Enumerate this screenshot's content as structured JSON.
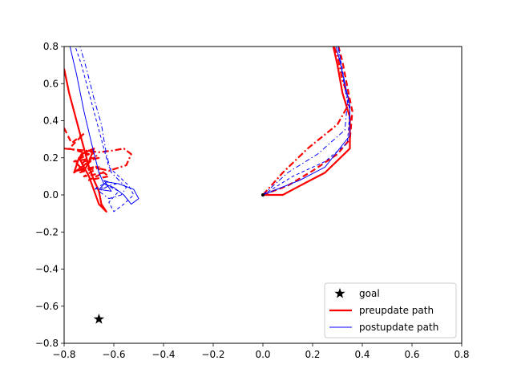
{
  "chart_data": {
    "type": "line",
    "title": "",
    "xlabel": "",
    "ylabel": "",
    "xlim": [
      -0.8,
      0.8
    ],
    "ylim": [
      -0.8,
      0.8
    ],
    "xticks": [
      -0.8,
      -0.6,
      -0.4,
      -0.2,
      0.0,
      0.2,
      0.4,
      0.6,
      0.8
    ],
    "yticks": [
      -0.8,
      -0.6,
      -0.4,
      -0.2,
      0.0,
      0.2,
      0.4,
      0.6,
      0.8
    ],
    "xtick_labels": [
      "−0.8",
      "−0.6",
      "−0.4",
      "−0.2",
      "0.0",
      "0.2",
      "0.4",
      "0.6",
      "0.8"
    ],
    "ytick_labels": [
      "−0.8",
      "−0.6",
      "−0.4",
      "−0.2",
      "0.0",
      "0.2",
      "0.4",
      "0.6",
      "0.8"
    ],
    "grid": false,
    "legend": {
      "placement": "lower-right",
      "entries": [
        "goal",
        "preupdate path",
        "postupdate path"
      ]
    },
    "colors": {
      "preupdate": "#ff0000",
      "postupdate": "#0000ff",
      "goal": "#000000"
    },
    "goal": {
      "x": -0.66,
      "y": -0.67
    },
    "series": [
      {
        "name": "preupdate path",
        "group": "pre",
        "style": "solid",
        "points": [
          [
            0,
            0
          ],
          [
            0.08,
            0.0
          ],
          [
            0.15,
            0.05
          ],
          [
            0.25,
            0.12
          ],
          [
            0.35,
            0.25
          ],
          [
            0.35,
            0.42
          ],
          [
            0.32,
            0.55
          ],
          [
            0.3,
            0.7
          ],
          [
            0.28,
            0.82
          ]
        ]
      },
      {
        "name": "preupdate path",
        "group": "pre",
        "style": "dashed",
        "points": [
          [
            0,
            0
          ],
          [
            0.1,
            0.05
          ],
          [
            0.2,
            0.13
          ],
          [
            0.3,
            0.22
          ],
          [
            0.35,
            0.3
          ],
          [
            0.36,
            0.45
          ],
          [
            0.34,
            0.58
          ],
          [
            0.32,
            0.72
          ],
          [
            0.3,
            0.82
          ]
        ]
      },
      {
        "name": "preupdate path",
        "group": "pre",
        "style": "dashdot",
        "points": [
          [
            0,
            0
          ],
          [
            0.08,
            0.12
          ],
          [
            0.18,
            0.25
          ],
          [
            0.3,
            0.38
          ],
          [
            0.35,
            0.5
          ],
          [
            0.32,
            0.62
          ],
          [
            0.3,
            0.75
          ],
          [
            0.28,
            0.82
          ]
        ]
      },
      {
        "name": "postupdate path",
        "group": "post",
        "style": "solid",
        "points": [
          [
            0,
            0
          ],
          [
            0.15,
            0.08
          ],
          [
            0.25,
            0.15
          ],
          [
            0.35,
            0.32
          ],
          [
            0.35,
            0.48
          ],
          [
            0.33,
            0.6
          ],
          [
            0.31,
            0.72
          ],
          [
            0.29,
            0.82
          ]
        ]
      },
      {
        "name": "postupdate path",
        "group": "post",
        "style": "dashed",
        "points": [
          [
            0,
            0
          ],
          [
            0.12,
            0.1
          ],
          [
            0.25,
            0.18
          ],
          [
            0.34,
            0.28
          ],
          [
            0.35,
            0.45
          ],
          [
            0.33,
            0.6
          ],
          [
            0.31,
            0.75
          ],
          [
            0.3,
            0.82
          ]
        ]
      },
      {
        "name": "postupdate path",
        "group": "post",
        "style": "dashdot",
        "points": [
          [
            0,
            0
          ],
          [
            0.1,
            0.12
          ],
          [
            0.22,
            0.22
          ],
          [
            0.33,
            0.35
          ],
          [
            0.34,
            0.5
          ],
          [
            0.32,
            0.65
          ],
          [
            0.3,
            0.82
          ]
        ]
      },
      {
        "name": "preupdate path",
        "group": "pre",
        "style": "solid",
        "points": [
          [
            -0.8,
            0.68
          ],
          [
            -0.78,
            0.55
          ],
          [
            -0.75,
            0.4
          ],
          [
            -0.72,
            0.25
          ],
          [
            -0.7,
            0.15
          ],
          [
            -0.68,
            0.08
          ],
          [
            -0.66,
            0.02
          ],
          [
            -0.65,
            -0.05
          ],
          [
            -0.63,
            -0.09
          ],
          [
            -0.66,
            -0.05
          ],
          [
            -0.7,
            0.1
          ],
          [
            -0.74,
            0.2
          ],
          [
            -0.76,
            0.12
          ],
          [
            -0.7,
            0.18
          ],
          [
            -0.68,
            0.25
          ],
          [
            -0.73,
            0.22
          ],
          [
            -0.75,
            0.17
          ],
          [
            -0.72,
            0.13
          ],
          [
            -0.69,
            0.2
          ]
        ]
      },
      {
        "name": "preupdate path",
        "group": "pre",
        "style": "dashed",
        "points": [
          [
            -0.8,
            0.36
          ],
          [
            -0.77,
            0.28
          ],
          [
            -0.72,
            0.33
          ],
          [
            -0.78,
            0.25
          ],
          [
            -0.7,
            0.22
          ],
          [
            -0.76,
            0.18
          ],
          [
            -0.68,
            0.2
          ],
          [
            -0.74,
            0.12
          ],
          [
            -0.66,
            0.15
          ],
          [
            -0.72,
            0.1
          ],
          [
            -0.64,
            0.12
          ],
          [
            -0.7,
            0.08
          ],
          [
            -0.62,
            0.1
          ],
          [
            -0.68,
            0.16
          ]
        ]
      },
      {
        "name": "preupdate path",
        "group": "pre",
        "style": "dashdot",
        "points": [
          [
            -0.8,
            0.25
          ],
          [
            -0.72,
            0.24
          ],
          [
            -0.66,
            0.23
          ],
          [
            -0.6,
            0.24
          ],
          [
            -0.56,
            0.25
          ],
          [
            -0.53,
            0.22
          ],
          [
            -0.55,
            0.16
          ],
          [
            -0.62,
            0.13
          ],
          [
            -0.68,
            0.15
          ],
          [
            -0.75,
            0.13
          ],
          [
            -0.72,
            0.18
          ],
          [
            -0.66,
            0.2
          ],
          [
            -0.7,
            0.24
          ],
          [
            -0.74,
            0.2
          ]
        ]
      },
      {
        "name": "postupdate path",
        "group": "post",
        "style": "solid",
        "points": [
          [
            -0.78,
            0.82
          ],
          [
            -0.75,
            0.65
          ],
          [
            -0.72,
            0.45
          ],
          [
            -0.69,
            0.28
          ],
          [
            -0.66,
            0.12
          ],
          [
            -0.64,
            0.06
          ],
          [
            -0.6,
            0.04
          ],
          [
            -0.56,
            0.0
          ],
          [
            -0.53,
            -0.05
          ],
          [
            -0.5,
            -0.02
          ],
          [
            -0.52,
            0.03
          ],
          [
            -0.58,
            0.06
          ],
          [
            -0.63,
            0.07
          ],
          [
            -0.66,
            0.03
          ],
          [
            -0.61,
            0.02
          ],
          [
            -0.64,
            0.08
          ]
        ]
      },
      {
        "name": "postupdate path",
        "group": "post",
        "style": "dashed",
        "points": [
          [
            -0.76,
            0.82
          ],
          [
            -0.73,
            0.7
          ],
          [
            -0.7,
            0.55
          ],
          [
            -0.67,
            0.4
          ],
          [
            -0.64,
            0.25
          ],
          [
            -0.62,
            0.15
          ],
          [
            -0.58,
            0.1
          ],
          [
            -0.54,
            0.05
          ],
          [
            -0.52,
            0.0
          ],
          [
            -0.56,
            -0.05
          ],
          [
            -0.6,
            -0.09
          ],
          [
            -0.62,
            -0.04
          ],
          [
            -0.58,
            0.02
          ],
          [
            -0.64,
            0.06
          ],
          [
            -0.68,
            0.03
          ],
          [
            -0.63,
            0.04
          ]
        ]
      },
      {
        "name": "postupdate path",
        "group": "post",
        "style": "dashdot",
        "points": [
          [
            -0.74,
            0.82
          ],
          [
            -0.71,
            0.68
          ],
          [
            -0.68,
            0.52
          ],
          [
            -0.65,
            0.38
          ],
          [
            -0.63,
            0.22
          ],
          [
            -0.61,
            0.12
          ],
          [
            -0.58,
            0.08
          ],
          [
            -0.55,
            0.04
          ],
          [
            -0.57,
            0.0
          ],
          [
            -0.62,
            -0.02
          ],
          [
            -0.66,
            0.02
          ],
          [
            -0.62,
            0.05
          ],
          [
            -0.59,
            0.06
          ],
          [
            -0.65,
            0.08
          ]
        ]
      }
    ]
  }
}
